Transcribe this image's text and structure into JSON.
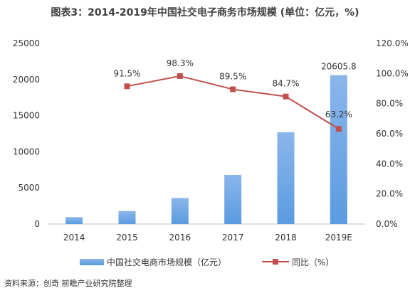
{
  "title": "图表3：2014-2019年中国社交电子商务市场规模 (单位：亿元，%)",
  "source": "资料来源：创奇 前瞻产业研究院整理",
  "colors": {
    "bar": "#5b9be1",
    "bar_light": "#8ab6ea",
    "line": "#c0504d",
    "axis_text": "#333333",
    "grid": "#e6e6e6"
  },
  "chart_data": {
    "type": "bar",
    "title": "图表3：2014-2019年中国社交电子商务市场规模 (单位：亿元，%)",
    "categories": [
      "2014",
      "2015",
      "2016",
      "2017",
      "2018",
      "2019E"
    ],
    "series": [
      {
        "name": "中国社交电商市场规模（亿元）",
        "type": "bar",
        "axis": "left",
        "values": [
          950,
          1800,
          3600,
          6800,
          12700,
          20605.8
        ],
        "labels": [
          null,
          null,
          null,
          null,
          null,
          "20605.8"
        ]
      },
      {
        "name": "同比（%）",
        "type": "line",
        "axis": "right",
        "values": [
          null,
          91.5,
          98.3,
          89.5,
          84.7,
          63.2
        ],
        "labels": [
          null,
          "91.5%",
          "98.3%",
          "89.5%",
          "84.7%",
          "63.2%"
        ]
      }
    ],
    "y_left": {
      "ylim": [
        0,
        25000
      ],
      "ticks": [
        "0",
        "5000",
        "10000",
        "15000",
        "20000",
        "25000"
      ]
    },
    "y_right": {
      "ylim": [
        0,
        120
      ],
      "ticks": [
        "0.0%",
        "20.0%",
        "40.0%",
        "60.0%",
        "80.0%",
        "100.0%",
        "120.0%"
      ]
    },
    "grid": false,
    "legend_position": "bottom"
  }
}
